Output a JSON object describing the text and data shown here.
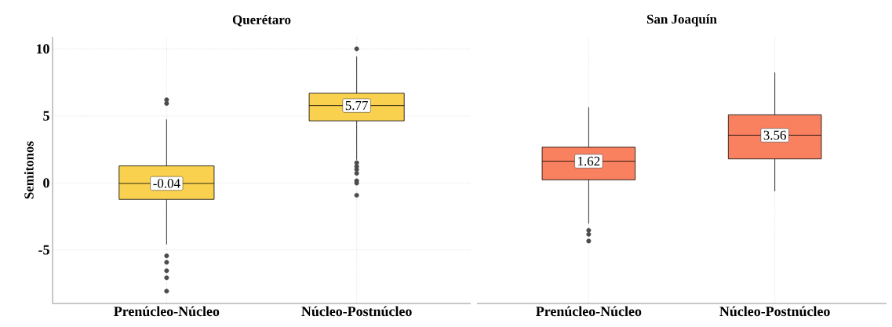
{
  "chart_data": [
    {
      "type": "box",
      "title": "Querétaro",
      "ylabel": "Semitonos",
      "categories": [
        "Prenúcleo-Núcleo",
        "Núcleo-Postnúcleo"
      ],
      "ylim": [
        -9,
        10.9
      ],
      "yticks": [
        -5,
        0,
        5,
        10
      ],
      "grid": true,
      "series": [
        {
          "color": "#f9d14f",
          "value_labels": [
            "-0.04",
            "5.77"
          ],
          "boxes": [
            {
              "low": -4.59,
              "q1": -1.23,
              "median": -0.04,
              "q3": 1.27,
              "high": 4.74,
              "outliers": [
                6.2,
                5.93,
                -5.44,
                -5.93,
                -6.56,
                -7.08,
                -8.08
              ]
            },
            {
              "low": 1.72,
              "q1": 4.63,
              "median": 5.77,
              "q3": 6.69,
              "high": 9.44,
              "outliers": [
                10,
                1.5,
                1.23,
                1.0,
                0.71,
                0.15,
                -0.02,
                -0.92
              ]
            }
          ]
        }
      ]
    },
    {
      "type": "box",
      "title": "San Joaquín",
      "categories": [
        "Prenúcleo-Núcleo",
        "Núcleo-Postnúcleo"
      ],
      "ylim": [
        -9,
        10.9
      ],
      "yticks": [
        -5,
        0,
        5,
        10
      ],
      "grid": true,
      "tick_labels": "x",
      "series": [
        {
          "color": "#fa8160",
          "value_labels": [
            "1.62",
            "3.56"
          ],
          "boxes": [
            {
              "low": -3.04,
              "q1": 0.23,
              "median": 1.62,
              "q3": 2.67,
              "high": 5.64,
              "outliers": [
                -3.54,
                -3.84,
                -4.34
              ]
            },
            {
              "low": -0.63,
              "q1": 1.79,
              "median": 3.56,
              "q3": 5.08,
              "high": 8.24
            }
          ]
        }
      ]
    }
  ]
}
